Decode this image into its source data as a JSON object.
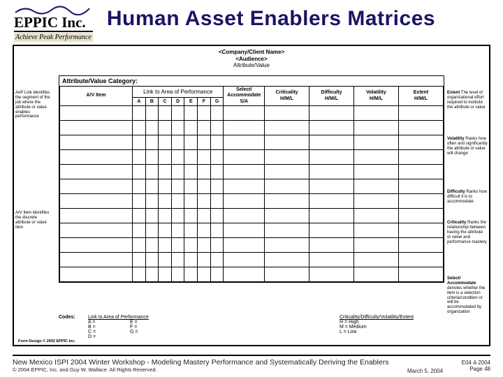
{
  "logo": {
    "name": "EPPIC Inc.",
    "tagline": "Achieve Peak Performance",
    "squiggle_color": "#1a1464"
  },
  "title": "Human Asset Enablers Matrices",
  "meta": {
    "l1": "<Company/Client Name>",
    "l2": "<Audience>",
    "l3": "Attribute/Value"
  },
  "category_label": "Attribute/Value Category:",
  "table": {
    "headers": {
      "av_item": "A/V Item",
      "link_span": "Link to Area of Performance",
      "cols": [
        "A",
        "B",
        "C",
        "D",
        "E",
        "F",
        "G"
      ],
      "sa1": "Select/",
      "sa2": "Accommodate",
      "sa3": "S/A",
      "crit1": "Criticality",
      "diff1": "Difficulty",
      "vol1": "Volatility",
      "ext1": "Extent",
      "hml": "H/M/L"
    },
    "blank_rows": 12
  },
  "sidenotes": {
    "aop": {
      "t": "AoP Link",
      "b": "identifies the segment of the job where the attribute or value enables performance"
    },
    "avitem": {
      "t": "A/V Item",
      "b": "identifies the discrete attribute or value item"
    },
    "extent": {
      "t": "Extent",
      "b": "The level of organizational effort required to institute the attribute or value"
    },
    "volatility": {
      "t": "Volatility",
      "b": "Ranks how often and significantly the attribute or value will change"
    },
    "difficulty": {
      "t": "Difficulty",
      "b": "Ranks how difficult it is to accommodate"
    },
    "criticality": {
      "t": "Criticality",
      "b": "Ranks the relationship between having the attribute or value and performance mastery"
    },
    "select": {
      "t": "Select/ Accommodate",
      "b": "denotes whether the item is a selection criteria/condition or will be accommodated by organization"
    }
  },
  "legend": {
    "codes": "Codes:",
    "link_title": "Link to Area of Performance",
    "link_items": [
      [
        "A =",
        "E ="
      ],
      [
        "B =",
        "F ="
      ],
      [
        "C =",
        "G ="
      ],
      [
        "D =",
        ""
      ]
    ],
    "hml_title": "Criticality/Difficulty/Volatility/Extent",
    "hml_items": [
      "H  = High",
      "M  = Medium",
      "L   = Low"
    ]
  },
  "form_design": "Form Design © 2002 EPPIC Inc.",
  "footer": {
    "line1": "New Mexico ISPI 2004 Winter Workshop  -  Modeling Mastery Performance and Systematically Deriving the Enablers",
    "line2": "© 2004 EPPIC, Inc. and Guy W. Wallace.   All Rights Reserved.",
    "center": "March 5, 2004",
    "right1": "E04  4-2004",
    "right2": "Page 48"
  },
  "colors": {
    "title": "#1a1464",
    "tag_bg": "#e8e2c8"
  }
}
